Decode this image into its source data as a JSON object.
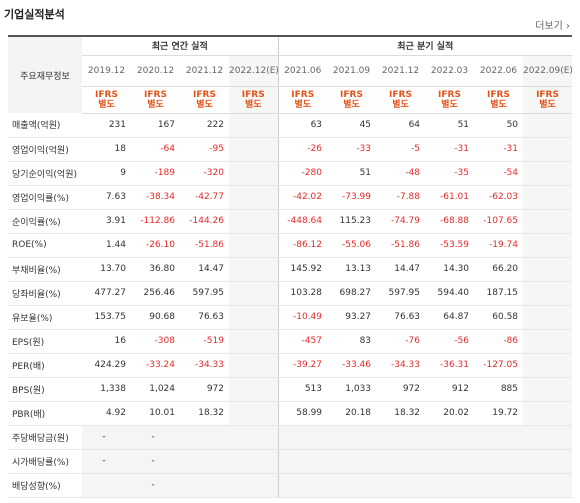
{
  "header": {
    "title": "기업실적분석",
    "more": "더보기 ›"
  },
  "table": {
    "corner": "주요재무정보",
    "annual_label": "최근 연간 실적",
    "quarter_label": "최근 분기 실적",
    "annual_dates": [
      "2019.12",
      "2020.12",
      "2021.12",
      "2022.12(E)"
    ],
    "quarter_dates": [
      "2021.06",
      "2021.09",
      "2021.12",
      "2022.03",
      "2022.06",
      "2022.09(E)"
    ],
    "ifrs_line1": "IFRS",
    "ifrs_line2": "별도",
    "rows": [
      {
        "label": "매출액(억원)",
        "values": [
          "231",
          "167",
          "222",
          "",
          "63",
          "45",
          "64",
          "51",
          "50",
          ""
        ]
      },
      {
        "label": "영업이익(억원)",
        "values": [
          "18",
          "-64",
          "-95",
          "",
          "-26",
          "-33",
          "-5",
          "-31",
          "-31",
          ""
        ]
      },
      {
        "label": "당기순이익(억원)",
        "values": [
          "9",
          "-189",
          "-320",
          "",
          "-280",
          "51",
          "-48",
          "-35",
          "-54",
          ""
        ]
      },
      {
        "label": "영업이익률(%)",
        "values": [
          "7.63",
          "-38.34",
          "-42.77",
          "",
          "-42.02",
          "-73.99",
          "-7.88",
          "-61.01",
          "-62.03",
          ""
        ]
      },
      {
        "label": "순이익률(%)",
        "values": [
          "3.91",
          "-112.86",
          "-144.26",
          "",
          "-448.64",
          "115.23",
          "-74.79",
          "-68.88",
          "-107.65",
          ""
        ]
      },
      {
        "label": "ROE(%)",
        "values": [
          "1.44",
          "-26.10",
          "-51.86",
          "",
          "-86.12",
          "-55.06",
          "-51.86",
          "-53.59",
          "-19.74",
          ""
        ]
      },
      {
        "label": "부채비율(%)",
        "values": [
          "13.70",
          "36.80",
          "14.47",
          "",
          "145.92",
          "13.13",
          "14.47",
          "14.30",
          "66.20",
          ""
        ]
      },
      {
        "label": "당좌비율(%)",
        "values": [
          "477.27",
          "256.46",
          "597.95",
          "",
          "103.28",
          "698.27",
          "597.95",
          "594.40",
          "187.15",
          ""
        ]
      },
      {
        "label": "유보율(%)",
        "values": [
          "153.75",
          "90.68",
          "76.63",
          "",
          "-10.49",
          "93.27",
          "76.63",
          "64.87",
          "60.58",
          ""
        ]
      },
      {
        "label": "EPS(원)",
        "values": [
          "16",
          "-308",
          "-519",
          "",
          "-457",
          "83",
          "-76",
          "-56",
          "-86",
          ""
        ]
      },
      {
        "label": "PER(배)",
        "values": [
          "424.29",
          "-33.24",
          "-34.33",
          "",
          "-39.27",
          "-33.46",
          "-34.33",
          "-36.31",
          "-127.05",
          ""
        ]
      },
      {
        "label": "BPS(원)",
        "values": [
          "1,338",
          "1,024",
          "972",
          "",
          "513",
          "1,033",
          "972",
          "912",
          "885",
          ""
        ]
      },
      {
        "label": "PBR(배)",
        "values": [
          "4.92",
          "10.01",
          "18.32",
          "",
          "58.99",
          "20.18",
          "18.32",
          "20.02",
          "19.72",
          ""
        ]
      },
      {
        "label": "주당배당금(원)",
        "values": [
          "-",
          "-",
          "",
          "",
          "",
          "",
          "",
          "",
          "",
          ""
        ]
      },
      {
        "label": "시가배당률(%)",
        "values": [
          "-",
          "-",
          "",
          "",
          "",
          "",
          "",
          "",
          "",
          ""
        ]
      },
      {
        "label": "배당성향(%)",
        "values": [
          "",
          "-",
          "",
          "",
          "",
          "",
          "",
          "",
          "",
          ""
        ]
      }
    ]
  }
}
